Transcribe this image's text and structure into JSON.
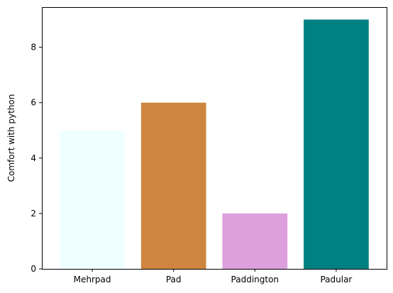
{
  "chart_data": {
    "type": "bar",
    "categories": [
      "Mehrpad",
      "Pad",
      "Paddington",
      "Padular"
    ],
    "values": [
      5,
      6,
      2,
      9
    ],
    "colors": [
      "#f0ffff",
      "#cd853f",
      "#dda0dd",
      "#008080"
    ],
    "title": "",
    "xlabel": "",
    "ylabel": "Comfort with python",
    "ylim": [
      0,
      9.45
    ],
    "yticks": [
      0,
      2,
      4,
      6,
      8
    ],
    "grid": false,
    "legend": "none"
  }
}
